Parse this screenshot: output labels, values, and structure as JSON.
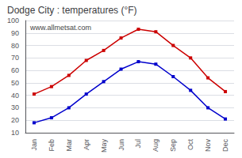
{
  "chart_data": {
    "type": "line",
    "title": "Dodge City : temperatures (°F)",
    "categories": [
      "Jan",
      "Feb",
      "Mar",
      "Apr",
      "May",
      "Jun",
      "Jul",
      "Aug",
      "Sep",
      "Oct",
      "Nov",
      "Dec"
    ],
    "series": [
      {
        "color": "#cc0000",
        "marker": "square",
        "line_style": "solid",
        "values": [
          41,
          47,
          56,
          68,
          76,
          86,
          93,
          91,
          80,
          70,
          54,
          43
        ]
      },
      {
        "color": "#0000cc",
        "marker": "square",
        "line_style": "solid",
        "values": [
          18,
          22,
          30,
          41,
          51,
          61,
          67,
          65,
          55,
          44,
          30,
          21
        ]
      }
    ],
    "ylim": [
      10,
      100
    ],
    "yticks": [
      10,
      20,
      30,
      40,
      50,
      60,
      70,
      80,
      90,
      100
    ],
    "grid": true,
    "annotations": [
      "www.allmetsat.com"
    ]
  }
}
